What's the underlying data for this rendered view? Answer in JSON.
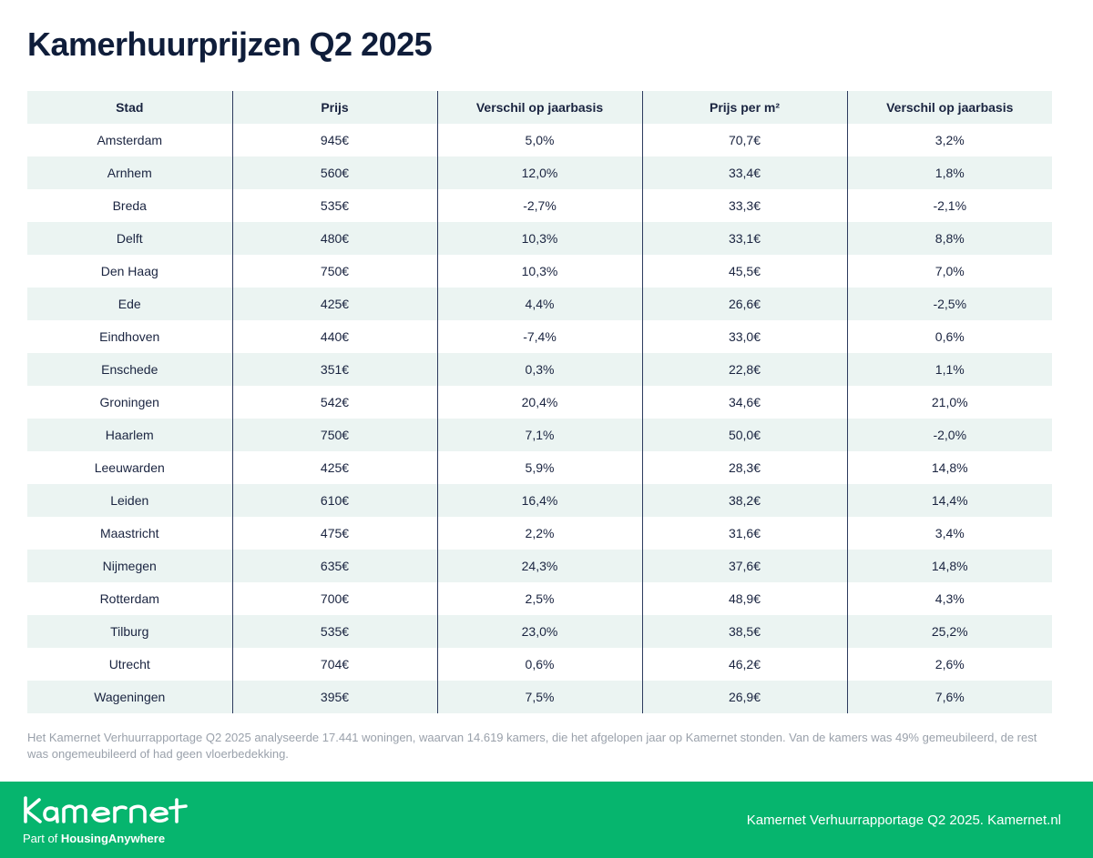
{
  "title": "Kamerhuurprijzen Q2 2025",
  "table": {
    "headers": [
      "Stad",
      "Prijs",
      "Verschil op jaarbasis",
      "Prijs per m²",
      "Verschil op jaarbasis"
    ],
    "rows": [
      [
        "Amsterdam",
        "945€",
        "5,0%",
        "70,7€",
        "3,2%"
      ],
      [
        "Arnhem",
        "560€",
        "12,0%",
        "33,4€",
        "1,8%"
      ],
      [
        "Breda",
        "535€",
        "-2,7%",
        "33,3€",
        "-2,1%"
      ],
      [
        "Delft",
        "480€",
        "10,3%",
        "33,1€",
        "8,8%"
      ],
      [
        "Den Haag",
        "750€",
        "10,3%",
        "45,5€",
        "7,0%"
      ],
      [
        "Ede",
        "425€",
        "4,4%",
        "26,6€",
        "-2,5%"
      ],
      [
        "Eindhoven",
        "440€",
        "-7,4%",
        "33,0€",
        "0,6%"
      ],
      [
        "Enschede",
        "351€",
        "0,3%",
        "22,8€",
        "1,1%"
      ],
      [
        "Groningen",
        "542€",
        "20,4%",
        "34,6€",
        "21,0%"
      ],
      [
        "Haarlem",
        "750€",
        "7,1%",
        "50,0€",
        "-2,0%"
      ],
      [
        "Leeuwarden",
        "425€",
        "5,9%",
        "28,3€",
        "14,8%"
      ],
      [
        "Leiden",
        "610€",
        "16,4%",
        "38,2€",
        "14,4%"
      ],
      [
        "Maastricht",
        "475€",
        "2,2%",
        "31,6€",
        "3,4%"
      ],
      [
        "Nijmegen",
        "635€",
        "24,3%",
        "37,6€",
        "14,8%"
      ],
      [
        "Rotterdam",
        "700€",
        "2,5%",
        "48,9€",
        "4,3%"
      ],
      [
        "Tilburg",
        "535€",
        "23,0%",
        "38,5€",
        "25,2%"
      ],
      [
        "Utrecht",
        "704€",
        "0,6%",
        "46,2€",
        "2,6%"
      ],
      [
        "Wageningen",
        "395€",
        "7,5%",
        "26,9€",
        "7,6%"
      ]
    ]
  },
  "footnote": "Het Kamernet Verhuurrapportage Q2 2025 analyseerde 17.441 woningen, waarvan 14.619 kamers, die het afgelopen jaar op Kamernet stonden. Van de kamers was 49% gemeubileerd, de rest was ongemeubileerd of had geen vloerbedekking.",
  "footer": {
    "logo_text": "Kamernet",
    "tagline_prefix": "Part of ",
    "tagline_brand": "HousingAnywhere",
    "credit": "Kamernet Verhuurrapportage Q2 2025. Kamernet.nl"
  },
  "colors": {
    "title": "#0f1d3a",
    "row_shade": "#ebf4f2",
    "divider": "#2d3b5e",
    "footnote": "#9aa1ab",
    "footer_bg": "#06b56e"
  }
}
